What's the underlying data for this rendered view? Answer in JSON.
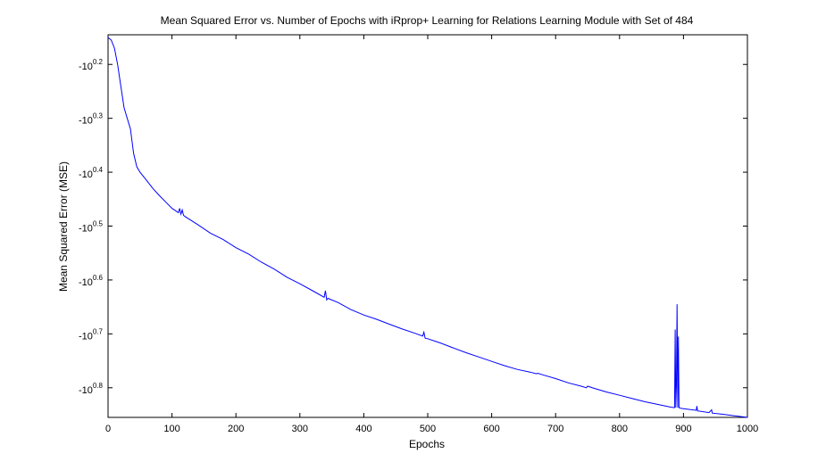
{
  "chart_data": {
    "type": "line",
    "title": "Mean Squared Error vs. Number of Epochs with iRprop+ Learning for Relations Learning Module with Set of 484",
    "xlabel": "Epochs",
    "ylabel": "Mean Squared Error (MSE)",
    "xlim": [
      0,
      1000
    ],
    "ylim_exponent": [
      0.145,
      0.855
    ],
    "y_scale": "log (negative values, labels -10^e)",
    "x_ticks": [
      "0",
      "100",
      "200",
      "300",
      "400",
      "500",
      "600",
      "700",
      "800",
      "900",
      "1000"
    ],
    "y_ticks": [
      {
        "exp": 0.2,
        "base": "-10",
        "power": "0.2"
      },
      {
        "exp": 0.3,
        "base": "-10",
        "power": "0.3"
      },
      {
        "exp": 0.4,
        "base": "-10",
        "power": "0.4"
      },
      {
        "exp": 0.5,
        "base": "-10",
        "power": "0.5"
      },
      {
        "exp": 0.6,
        "base": "-10",
        "power": "0.6"
      },
      {
        "exp": 0.7,
        "base": "-10",
        "power": "0.7"
      },
      {
        "exp": 0.8,
        "base": "-10",
        "power": "0.8"
      }
    ],
    "grid": false,
    "line_color": "#0000ff",
    "series": [
      {
        "x": [
          0,
          5,
          10,
          15,
          20,
          25,
          30,
          35,
          40,
          45,
          50,
          60,
          70,
          80,
          90,
          100,
          110,
          112,
          114,
          116,
          118,
          120,
          140,
          160,
          180,
          200,
          220,
          240,
          260,
          280,
          300,
          320,
          338,
          340,
          342,
          344,
          360,
          380,
          400,
          420,
          440,
          460,
          480,
          492,
          494,
          496,
          500,
          520,
          540,
          560,
          580,
          600,
          620,
          640,
          660,
          670,
          672,
          680,
          700,
          720,
          740,
          748,
          750,
          760,
          780,
          800,
          820,
          840,
          860,
          880,
          886,
          887,
          888,
          889,
          890,
          891,
          892,
          893,
          894,
          895,
          900,
          920,
          921,
          922,
          940,
          944,
          945,
          960,
          980,
          1000
        ],
        "y_exponent": [
          0.15,
          0.155,
          0.17,
          0.2,
          0.24,
          0.28,
          0.3,
          0.32,
          0.365,
          0.39,
          0.4,
          0.415,
          0.43,
          0.443,
          0.455,
          0.467,
          0.475,
          0.467,
          0.478,
          0.47,
          0.48,
          0.482,
          0.497,
          0.513,
          0.525,
          0.54,
          0.552,
          0.567,
          0.58,
          0.595,
          0.607,
          0.62,
          0.632,
          0.62,
          0.637,
          0.634,
          0.642,
          0.655,
          0.665,
          0.673,
          0.682,
          0.691,
          0.699,
          0.704,
          0.697,
          0.708,
          0.709,
          0.717,
          0.726,
          0.735,
          0.743,
          0.751,
          0.759,
          0.766,
          0.771,
          0.774,
          0.773,
          0.776,
          0.783,
          0.791,
          0.797,
          0.8,
          0.797,
          0.801,
          0.808,
          0.814,
          0.82,
          0.826,
          0.831,
          0.836,
          0.837,
          0.692,
          0.837,
          0.795,
          0.645,
          0.837,
          0.705,
          0.837,
          0.837,
          0.838,
          0.839,
          0.842,
          0.834,
          0.843,
          0.846,
          0.841,
          0.847,
          0.849,
          0.852,
          0.855
        ]
      }
    ]
  }
}
